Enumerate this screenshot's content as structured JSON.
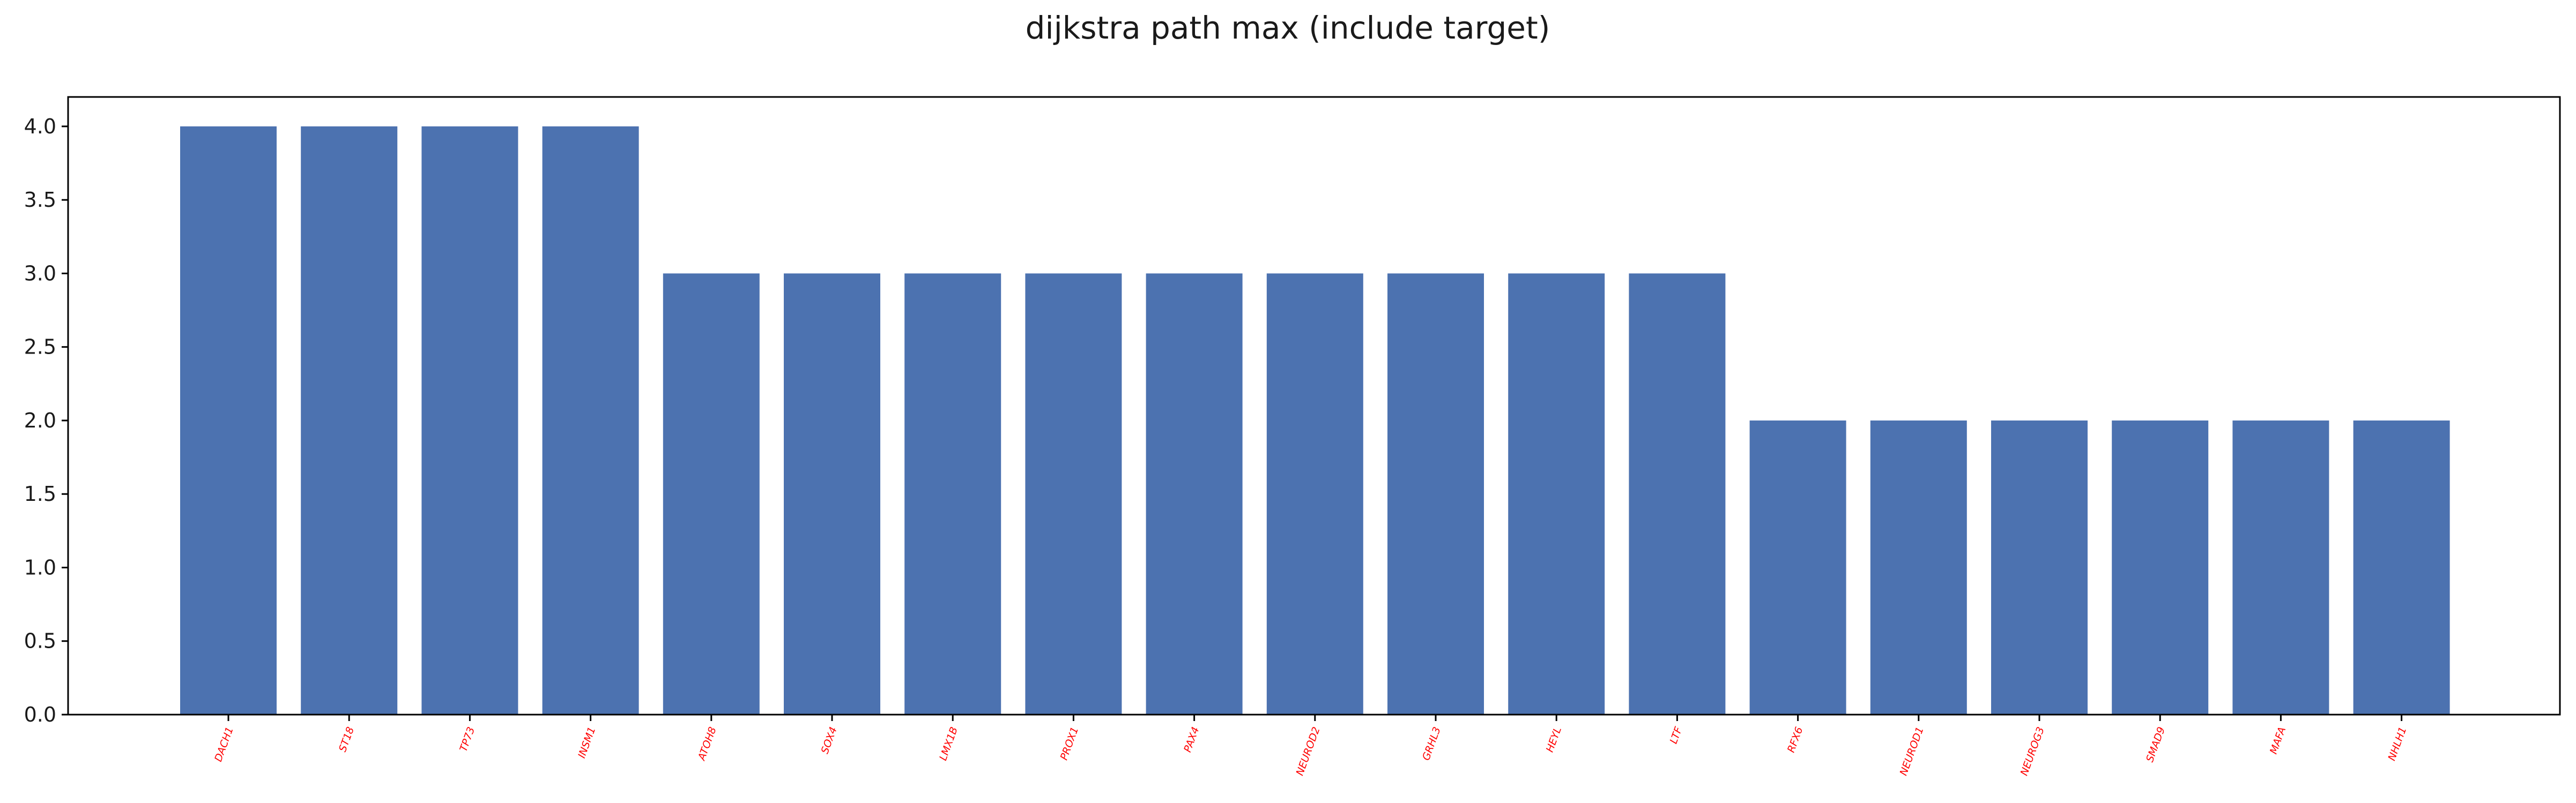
{
  "chart_data": {
    "type": "bar",
    "title": "dijkstra path max (include target)",
    "xlabel": "",
    "ylabel": "",
    "categories": [
      "DACH1",
      "ST18",
      "TP73",
      "INSM1",
      "ATOH8",
      "SOX4",
      "LMX1B",
      "PROX1",
      "PAX4",
      "NEUROD2",
      "GRHL3",
      "HEYL",
      "LTF",
      "RFX6",
      "NEUROD1",
      "NEUROG3",
      "SMAD9",
      "MAFA",
      "NHLH1"
    ],
    "values": [
      4,
      4,
      4,
      4,
      3,
      3,
      3,
      3,
      3,
      3,
      3,
      3,
      3,
      2,
      2,
      2,
      2,
      2,
      2
    ],
    "ylim": [
      0,
      4.2
    ],
    "yticks": [
      "0.0",
      "0.5",
      "1.0",
      "1.5",
      "2.0",
      "2.5",
      "3.0",
      "3.5",
      "4.0"
    ],
    "grid": false,
    "legend": "none",
    "bar_color": "#4c72b0",
    "xtick_label_color": "#ff0000"
  }
}
